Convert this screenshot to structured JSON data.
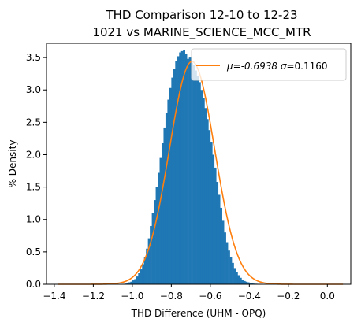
{
  "chart_data": {
    "type": "histogram",
    "title": [
      "THD Comparison 12-10 to 12-23",
      "1021 vs MARINE_SCIENCE_MCC_MTR"
    ],
    "xlabel": "THD Difference  (UHM - OPQ)",
    "ylabel": "% Density",
    "xlim": [
      -1.44,
      0.12
    ],
    "ylim": [
      0,
      3.72
    ],
    "xticks": [
      -1.4,
      -1.2,
      -1.0,
      -0.8,
      -0.6,
      -0.4,
      -0.2,
      0.0
    ],
    "xtick_labels": [
      "−1.4",
      "−1.2",
      "−1.0",
      "−0.8",
      "−0.6",
      "−0.4",
      "−0.2",
      "0.0"
    ],
    "yticks": [
      0.0,
      0.5,
      1.0,
      1.5,
      2.0,
      2.5,
      3.0,
      3.5
    ],
    "ytick_labels": [
      "0.0",
      "0.5",
      "1.0",
      "1.5",
      "2.0",
      "2.5",
      "3.0",
      "3.5"
    ],
    "legend": {
      "position": "top-right",
      "label_prefix": "μ=-0.6938 ",
      "label_sigma": "σ",
      "label_suffix": "=0.1160"
    },
    "fit": {
      "mu": -0.6938,
      "sigma": 0.116,
      "x_range": [
        -1.38,
        0.08
      ],
      "color": "#ff7f0e"
    },
    "histogram": {
      "color": "#1f77b4",
      "bin_edges": [
        -1.04,
        -1.03,
        -1.02,
        -1.01,
        -1.0,
        -0.99,
        -0.98,
        -0.97,
        -0.96,
        -0.95,
        -0.94,
        -0.93,
        -0.92,
        -0.91,
        -0.9,
        -0.89,
        -0.88,
        -0.87,
        -0.86,
        -0.85,
        -0.84,
        -0.83,
        -0.82,
        -0.81,
        -0.8,
        -0.79,
        -0.78,
        -0.77,
        -0.76,
        -0.75,
        -0.74,
        -0.73,
        -0.72,
        -0.71,
        -0.7,
        -0.69,
        -0.68,
        -0.67,
        -0.66,
        -0.65,
        -0.64,
        -0.63,
        -0.62,
        -0.61,
        -0.6,
        -0.59,
        -0.58,
        -0.57,
        -0.56,
        -0.55,
        -0.54,
        -0.53,
        -0.52,
        -0.51,
        -0.5,
        -0.49,
        -0.48,
        -0.47,
        -0.46,
        -0.45,
        -0.44,
        -0.43,
        -0.42,
        -0.41,
        -0.4,
        -0.39,
        -0.38,
        -0.37,
        -0.36,
        -0.35,
        -0.34,
        -0.33,
        -0.32,
        -0.31
      ],
      "densities": [
        0.01,
        0.02,
        0.03,
        0.04,
        0.06,
        0.08,
        0.12,
        0.17,
        0.23,
        0.31,
        0.42,
        0.55,
        0.71,
        0.9,
        1.1,
        1.3,
        1.5,
        1.72,
        1.95,
        2.18,
        2.42,
        2.65,
        2.85,
        3.03,
        3.19,
        3.32,
        3.45,
        3.52,
        3.58,
        3.6,
        3.62,
        3.55,
        3.48,
        3.5,
        3.42,
        3.38,
        3.3,
        3.22,
        3.12,
        3.0,
        2.88,
        2.72,
        2.55,
        2.38,
        2.2,
        2.0,
        1.8,
        1.58,
        1.38,
        1.18,
        0.98,
        0.8,
        0.65,
        0.52,
        0.42,
        0.33,
        0.25,
        0.19,
        0.14,
        0.1,
        0.07,
        0.05,
        0.04,
        0.03,
        0.02,
        0.015,
        0.01,
        0.008,
        0.006,
        0.005,
        0.004,
        0.003,
        0.002
      ]
    }
  }
}
